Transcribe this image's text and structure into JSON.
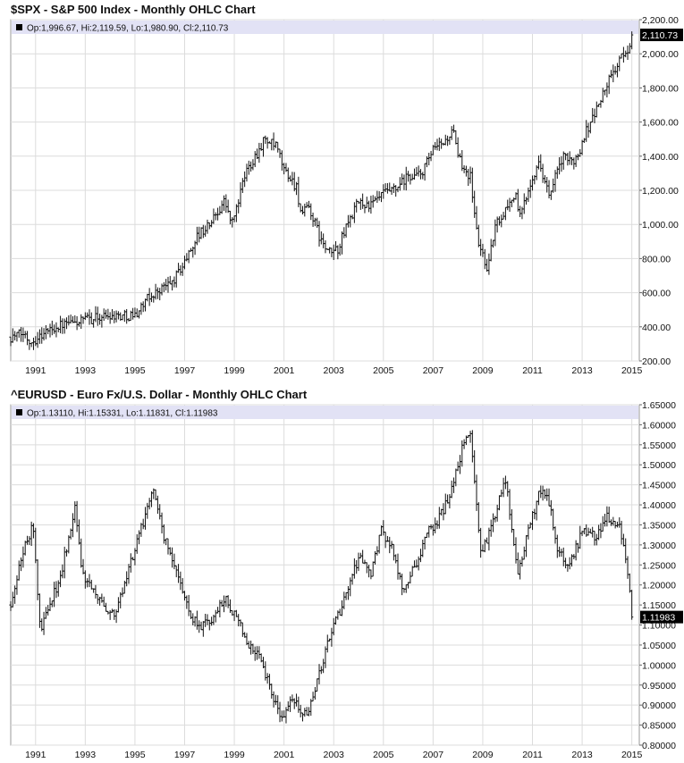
{
  "chart_data": [
    {
      "type": "ohlc",
      "title": "$SPX - S&P 500 Index - Monthly OHLC Chart",
      "ohlc_text": "Op:1,996.67, Hi:2,119.59, Lo:1,980.90, Cl:2,110.73",
      "last_value_label": "2,110.73",
      "last_value": 2110.73,
      "ylim": [
        200,
        2200
      ],
      "y_ticks": [
        200,
        400,
        600,
        800,
        1000,
        1200,
        1400,
        1600,
        1800,
        2000,
        2200
      ],
      "y_tick_labels": [
        "200.00",
        "400.00",
        "600.00",
        "800.00",
        "1,000.00",
        "1,200.00",
        "1,400.00",
        "1,600.00",
        "1,800.00",
        "2,000.00",
        "2,200.00"
      ],
      "xlim": [
        1990.0,
        2015.3
      ],
      "x_ticks": [
        1991,
        1993,
        1995,
        1997,
        1999,
        2001,
        2003,
        2005,
        2007,
        2009,
        2011,
        2013,
        2015
      ],
      "x_tick_labels": [
        "1991",
        "1993",
        "1995",
        "1997",
        "1999",
        "2001",
        "2003",
        "2005",
        "2007",
        "2009",
        "2011",
        "2013",
        "2015"
      ],
      "grid": true,
      "x": [
        1990.0,
        1990.5,
        1990.8,
        1991.0,
        1991.5,
        1992.0,
        1992.5,
        1993.0,
        1993.5,
        1994.0,
        1994.5,
        1995.0,
        1995.5,
        1996.0,
        1996.5,
        1997.0,
        1997.5,
        1998.0,
        1998.6,
        1998.9,
        1999.5,
        2000.0,
        2000.2,
        2000.7,
        2001.0,
        2001.5,
        2001.7,
        2002.0,
        2002.5,
        2002.8,
        2003.2,
        2003.5,
        2004.0,
        2004.5,
        2005.0,
        2005.5,
        2006.0,
        2006.5,
        2007.0,
        2007.5,
        2007.8,
        2008.0,
        2008.5,
        2008.8,
        2009.0,
        2009.2,
        2009.5,
        2010.0,
        2010.3,
        2010.5,
        2011.0,
        2011.3,
        2011.7,
        2012.0,
        2012.3,
        2012.5,
        2012.9,
        2013.0,
        2013.5,
        2014.0,
        2014.5,
        2014.8,
        2015.0
      ],
      "close": [
        340,
        360,
        315,
        330,
        380,
        410,
        420,
        440,
        455,
        470,
        465,
        470,
        560,
        620,
        660,
        780,
        930,
        1000,
        1140,
        1000,
        1320,
        1440,
        1500,
        1450,
        1320,
        1220,
        1050,
        1100,
        900,
        830,
        860,
        990,
        1130,
        1110,
        1180,
        1200,
        1280,
        1290,
        1430,
        1490,
        1550,
        1390,
        1280,
        900,
        820,
        740,
        990,
        1110,
        1180,
        1040,
        1290,
        1360,
        1150,
        1320,
        1400,
        1360,
        1420,
        1500,
        1650,
        1820,
        1960,
        2010,
        2110
      ]
    },
    {
      "type": "ohlc",
      "title": "^EURUSD - Euro Fx/U.S. Dollar - Monthly OHLC Chart",
      "ohlc_text": "Op:1.13110, Hi:1.15331, Lo:1.11831, Cl:1.11983",
      "last_value_label": "1.11983",
      "last_value": 1.11983,
      "ylim": [
        0.8,
        1.65
      ],
      "y_ticks": [
        0.8,
        0.85,
        0.9,
        0.95,
        1.0,
        1.05,
        1.1,
        1.15,
        1.2,
        1.25,
        1.3,
        1.35,
        1.4,
        1.45,
        1.5,
        1.55,
        1.6,
        1.65
      ],
      "y_tick_labels": [
        "0.80000",
        "0.85000",
        "0.90000",
        "0.95000",
        "1.00000",
        "1.05000",
        "1.10000",
        "1.15000",
        "1.20000",
        "1.25000",
        "1.30000",
        "1.35000",
        "1.40000",
        "1.45000",
        "1.50000",
        "1.55000",
        "1.60000",
        "1.65000"
      ],
      "xlim": [
        1990.0,
        2015.3
      ],
      "x_ticks": [
        1991,
        1993,
        1995,
        1997,
        1999,
        2001,
        2003,
        2005,
        2007,
        2009,
        2011,
        2013,
        2015
      ],
      "x_tick_labels": [
        "1991",
        "1993",
        "1995",
        "1997",
        "1999",
        "2001",
        "2003",
        "2005",
        "2007",
        "2009",
        "2011",
        "2013",
        "2015"
      ],
      "grid": true,
      "x": [
        1990.0,
        1990.5,
        1990.9,
        1991.2,
        1991.6,
        1992.0,
        1992.6,
        1992.9,
        1993.3,
        1993.7,
        1994.2,
        1994.7,
        1995.3,
        1995.7,
        1996.2,
        1996.7,
        1997.2,
        1997.6,
        1998.0,
        1998.6,
        1999.0,
        1999.5,
        2000.0,
        2000.5,
        2000.9,
        2001.3,
        2001.6,
        2002.0,
        2002.5,
        2003.0,
        2003.5,
        2004.0,
        2004.5,
        2004.9,
        2005.3,
        2005.8,
        2006.3,
        2006.8,
        2007.3,
        2007.8,
        2008.3,
        2008.5,
        2008.9,
        2009.3,
        2009.9,
        2010.4,
        2010.9,
        2011.3,
        2011.7,
        2012.0,
        2012.5,
        2013.0,
        2013.5,
        2014.0,
        2014.5,
        2014.8,
        2015.0
      ],
      "close": [
        1.15,
        1.28,
        1.35,
        1.08,
        1.16,
        1.22,
        1.4,
        1.22,
        1.18,
        1.15,
        1.12,
        1.23,
        1.35,
        1.44,
        1.31,
        1.24,
        1.13,
        1.1,
        1.1,
        1.17,
        1.13,
        1.06,
        1.03,
        0.93,
        0.87,
        0.92,
        0.89,
        0.88,
        1.0,
        1.1,
        1.17,
        1.27,
        1.22,
        1.34,
        1.3,
        1.19,
        1.25,
        1.33,
        1.37,
        1.45,
        1.57,
        1.58,
        1.28,
        1.33,
        1.47,
        1.22,
        1.35,
        1.44,
        1.4,
        1.28,
        1.25,
        1.33,
        1.32,
        1.37,
        1.35,
        1.25,
        1.12
      ]
    }
  ]
}
